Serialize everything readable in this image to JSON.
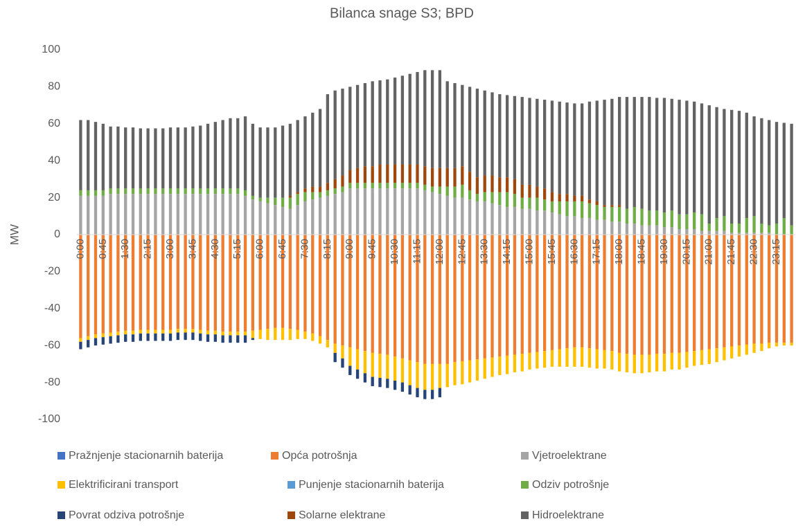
{
  "chart_data": {
    "type": "bar",
    "stacked": true,
    "title": "Bilanca snage S3; BPD",
    "y_label": "MW",
    "categories": [
      "0:00",
      null,
      null,
      "0:45",
      null,
      null,
      "1:30",
      null,
      null,
      "2:15",
      null,
      null,
      "3:00",
      null,
      null,
      "3:45",
      null,
      null,
      "4:30",
      null,
      null,
      "5:15",
      null,
      null,
      "6:00",
      null,
      null,
      "6:45",
      null,
      null,
      "7:30",
      null,
      null,
      "8:15",
      null,
      null,
      "9:00",
      null,
      null,
      "9:45",
      null,
      null,
      "10:30",
      null,
      null,
      "11:15",
      null,
      null,
      "12:00",
      null,
      null,
      "12:45",
      null,
      null,
      "13:30",
      null,
      null,
      "14:15",
      null,
      null,
      "15:00",
      null,
      null,
      "15:45",
      null,
      null,
      "16:30",
      null,
      null,
      "17:15",
      null,
      null,
      "18:00",
      null,
      null,
      "18:45",
      null,
      null,
      "19:30",
      null,
      null,
      "20:15",
      null,
      null,
      "21:00",
      null,
      null,
      "21:45",
      null,
      null,
      "22:30",
      null,
      null,
      "23:15",
      null,
      null
    ],
    "ylim": [
      -100,
      100
    ],
    "yticks": [
      -100,
      -80,
      -60,
      -40,
      -20,
      0,
      20,
      40,
      60,
      80,
      100
    ],
    "grid": false,
    "legend": "bottom",
    "series": [
      {
        "name": "Pražnjenje stacionarnih baterija",
        "color": "#4472c4",
        "values": [
          0,
          0,
          0,
          0,
          0,
          0,
          0,
          0,
          0,
          0,
          0,
          0,
          0,
          0,
          0,
          0,
          0,
          0,
          0,
          0,
          0,
          0,
          0,
          0,
          0,
          0,
          0,
          0,
          0,
          0,
          0,
          0,
          0,
          0,
          0,
          0,
          0,
          0,
          0,
          0,
          0,
          0,
          0,
          0,
          0,
          0,
          0,
          0,
          0,
          0,
          0,
          0,
          0,
          0,
          0,
          0,
          0,
          0,
          0,
          0,
          0,
          0,
          0,
          0,
          0,
          0,
          0,
          0,
          0,
          0,
          0,
          0,
          0,
          0,
          0,
          0,
          0,
          0,
          0,
          0,
          0,
          0,
          0,
          0,
          0,
          0,
          0,
          0,
          0,
          0,
          0,
          0,
          0,
          0,
          0,
          0
        ]
      },
      {
        "name": "Opća potrošnja",
        "color": "#ed7d31",
        "values": [
          -56,
          -55,
          -54,
          -53.5,
          -53,
          -52.5,
          -52,
          -52,
          -51.5,
          -51.5,
          -51.5,
          -51.5,
          -51.5,
          -51,
          -51,
          -51,
          -51.5,
          -52,
          -52,
          -52.5,
          -52.5,
          -52.5,
          -52.5,
          -52,
          -51.5,
          -51,
          -50.5,
          -50.5,
          -51,
          -51.5,
          -52.5,
          -53.5,
          -55,
          -57,
          -59,
          -60,
          -61,
          -62,
          -63,
          -64,
          -64.5,
          -65,
          -66,
          -67,
          -68,
          -69,
          -70,
          -70,
          -70,
          -70,
          -69,
          -68.5,
          -68,
          -67.5,
          -67,
          -66.5,
          -66,
          -65.5,
          -65,
          -64.5,
          -64,
          -63.5,
          -63,
          -62.5,
          -62,
          -61.5,
          -61,
          -61,
          -61.5,
          -62,
          -62.5,
          -63,
          -64,
          -64.5,
          -65,
          -65,
          -65,
          -64.5,
          -64.5,
          -64,
          -64,
          -63.5,
          -63,
          -62.5,
          -62,
          -61.5,
          -61,
          -60.5,
          -60,
          -59.5,
          -59,
          -59,
          -58.5,
          -58.5,
          -58.5,
          -58.5
        ]
      },
      {
        "name": "Vjetroelektrane",
        "color": "#a5a5a5",
        "values": [
          21,
          21,
          21,
          21,
          22,
          22,
          22,
          22,
          22,
          22,
          22,
          22,
          22,
          22,
          22,
          22,
          22,
          22,
          22,
          22,
          22,
          22,
          21,
          19,
          18,
          17,
          16,
          15,
          14,
          16,
          18,
          19,
          20,
          21,
          22,
          23,
          25,
          25,
          25,
          25,
          25,
          25,
          25,
          25,
          25,
          25,
          24,
          23,
          22,
          21,
          20,
          20,
          19,
          18,
          18,
          17,
          16,
          15,
          15,
          14,
          14,
          13,
          13,
          12,
          11,
          10,
          10,
          9,
          9,
          8,
          8,
          7,
          7,
          6,
          6,
          5,
          5,
          5,
          4,
          4,
          3,
          3,
          3,
          2,
          2,
          2,
          2,
          1,
          1,
          1,
          1,
          1,
          1,
          0,
          0,
          0
        ]
      },
      {
        "name": "Elektrificirani transport",
        "color": "#ffc000",
        "values": [
          -2,
          -2,
          -2,
          -2,
          -2,
          -2,
          -2,
          -2,
          -2,
          -2,
          -2,
          -2,
          -2,
          -2,
          -2,
          -2,
          -2,
          -2,
          -2,
          -2,
          -2,
          -2,
          -2,
          -4,
          -5,
          -6,
          -6.5,
          -6.5,
          -6,
          -5,
          -4,
          -4,
          -4,
          -4,
          -5,
          -7,
          -10,
          -11,
          -12,
          -13,
          -13,
          -13,
          -13,
          -13,
          -13.5,
          -14,
          -14,
          -14,
          -13,
          -12.5,
          -12.5,
          -12.5,
          -12,
          -11.5,
          -11,
          -10.5,
          -10,
          -10,
          -9.5,
          -9.5,
          -9,
          -9,
          -9,
          -9,
          -9.5,
          -10,
          -10.5,
          -10.5,
          -10.5,
          -10.5,
          -10,
          -10,
          -10,
          -10,
          -10,
          -10,
          -9.5,
          -9.5,
          -9.5,
          -9,
          -9,
          -8.5,
          -8,
          -8,
          -8,
          -7.5,
          -7,
          -6.5,
          -6,
          -5.5,
          -5,
          -4,
          -3,
          -2,
          -1.5,
          -1.5
        ]
      },
      {
        "name": "Punjenje stacionarnih baterija",
        "color": "#5b9bd5",
        "values": [
          0,
          0,
          0,
          0,
          0,
          0,
          0,
          0,
          0,
          0,
          0,
          0,
          0,
          0,
          0,
          0,
          0,
          0,
          0,
          0,
          0,
          0,
          0,
          0,
          0,
          0,
          0,
          0,
          0,
          0,
          0,
          0,
          0,
          0,
          0,
          0,
          0,
          0,
          0,
          0,
          0,
          0,
          0,
          0,
          0,
          0,
          0,
          0,
          0,
          0,
          0,
          0,
          0,
          0,
          0,
          0,
          0,
          0,
          0,
          0,
          0,
          0,
          0,
          0,
          0,
          0,
          0,
          0,
          0,
          0,
          0,
          0,
          0,
          0,
          0,
          0,
          0,
          0,
          0,
          0,
          0,
          0,
          0,
          0,
          0,
          0,
          0,
          0,
          0,
          0,
          0,
          0,
          0,
          0,
          0,
          0
        ]
      },
      {
        "name": "Odziv potrošnje",
        "color": "#70ad47",
        "values": [
          3,
          3,
          3,
          3,
          3,
          3,
          3,
          3,
          3,
          3,
          3,
          3,
          3,
          3,
          3,
          3,
          3,
          3,
          3,
          3,
          3,
          3,
          3,
          2,
          2,
          3,
          4,
          5,
          6,
          6,
          5,
          4,
          3,
          3,
          3,
          3,
          3,
          3,
          3,
          3,
          3,
          3,
          3,
          3,
          3,
          3,
          3,
          3,
          4,
          5,
          6,
          7,
          5,
          4,
          5,
          6,
          7,
          8,
          7,
          6,
          6,
          7,
          6,
          6,
          7,
          8,
          8,
          9,
          8,
          8,
          7,
          8,
          8,
          8,
          9,
          9,
          8,
          8,
          8,
          9,
          8,
          8,
          9,
          9,
          4,
          7,
          8,
          5,
          5,
          8,
          9,
          5,
          4,
          6,
          9,
          5
        ]
      },
      {
        "name": "Povrat odziva potrošnje",
        "color": "#264478",
        "values": [
          -4,
          -4,
          -4,
          -4,
          -4,
          -4,
          -4,
          -4,
          -4,
          -4,
          -4,
          -4,
          -4,
          -4,
          -4,
          -4,
          -4,
          -4,
          -4,
          -4,
          -4,
          -4,
          -4,
          -1,
          0,
          0,
          0,
          0,
          0,
          0,
          0,
          0,
          0,
          0,
          -5,
          -5,
          -5,
          -5,
          -5,
          -5,
          -5,
          -5,
          -5,
          -5,
          -5,
          -5,
          -5,
          -5,
          -5,
          0,
          0,
          0,
          0,
          0,
          0,
          0,
          0,
          0,
          0,
          0,
          0,
          0,
          0,
          0,
          0,
          0,
          0,
          0,
          0,
          0,
          0,
          0,
          0,
          0,
          0,
          0,
          0,
          0,
          0,
          0,
          0,
          0,
          0,
          0,
          0,
          0,
          0,
          0,
          0,
          0,
          0,
          0,
          0,
          0,
          0,
          0
        ]
      },
      {
        "name": "Solarne elektrane",
        "color": "#9e480e",
        "values": [
          0,
          0,
          0,
          0,
          0,
          0,
          0,
          0,
          0,
          0,
          0,
          0,
          0,
          0,
          0,
          0,
          0,
          0,
          0,
          0,
          0,
          0,
          0,
          0,
          0,
          0,
          0,
          0,
          1,
          1,
          2,
          3,
          3,
          4,
          5,
          6,
          7,
          8,
          9,
          9,
          10,
          10,
          10,
          10,
          10,
          10,
          10,
          10,
          10,
          10,
          10,
          10,
          10,
          9,
          9,
          9,
          8,
          8,
          8,
          7,
          7,
          6,
          6,
          5,
          4,
          4,
          3,
          3,
          2,
          2,
          1,
          1,
          1,
          0,
          0,
          0,
          0,
          0,
          0,
          0,
          0,
          0,
          0,
          0,
          0,
          0,
          0,
          0,
          0,
          0,
          0,
          0,
          0,
          0,
          0,
          0
        ]
      },
      {
        "name": "Hidroelektrane",
        "color": "#636363",
        "values": [
          38,
          38,
          37,
          36,
          33.5,
          33.5,
          33,
          33,
          32.5,
          32.5,
          32.5,
          32.5,
          33,
          33,
          33,
          33.5,
          34,
          35,
          36,
          37,
          38,
          38,
          40,
          39,
          38,
          38,
          38,
          39,
          39,
          39,
          39,
          40,
          42,
          48,
          48,
          47,
          45,
          45,
          45,
          46,
          45.5,
          46,
          47,
          48,
          49,
          50,
          52,
          53,
          53,
          47,
          46,
          44,
          46,
          48,
          46,
          45,
          45,
          44.5,
          45,
          47.5,
          47,
          47.5,
          48,
          49.5,
          50,
          49.5,
          50,
          50,
          53,
          54.5,
          57,
          57.5,
          58.5,
          60.5,
          59.5,
          60.5,
          61.5,
          61,
          62,
          60.5,
          62,
          61.5,
          60,
          60,
          64,
          60,
          58,
          61.5,
          61,
          57,
          54,
          57,
          57,
          55,
          51.5,
          55
        ]
      }
    ]
  }
}
